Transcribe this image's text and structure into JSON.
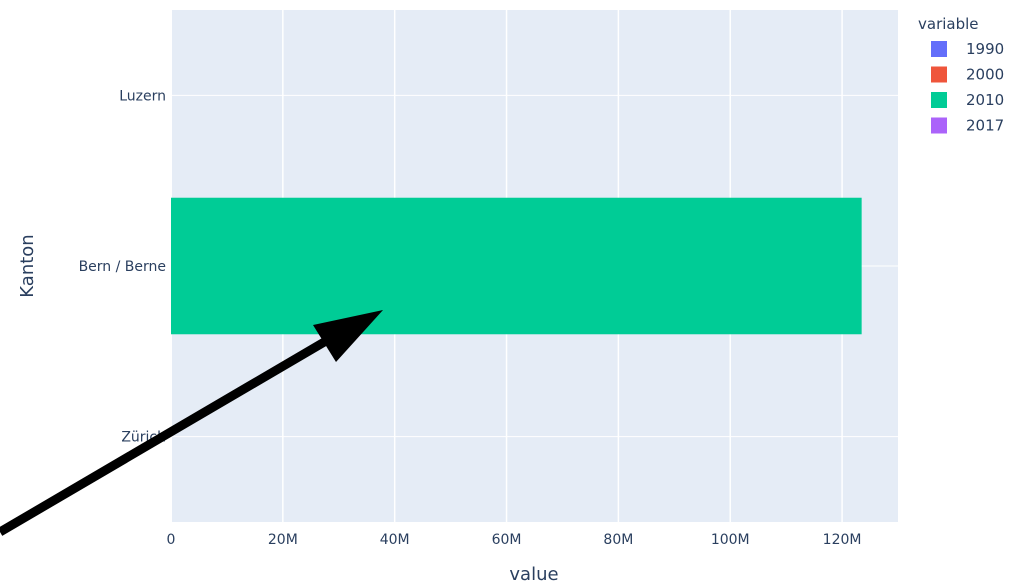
{
  "chart_data": {
    "type": "bar",
    "orientation": "horizontal",
    "barmode": "group",
    "xlabel": "value",
    "ylabel": "Kanton",
    "categories": [
      "Luzern",
      "Bern / Berne",
      "Zürich"
    ],
    "x_ticks": [
      0,
      20000000,
      40000000,
      60000000,
      80000000,
      100000000,
      120000000
    ],
    "x_tick_labels": [
      "0",
      "20M",
      "40M",
      "60M",
      "80M",
      "100M",
      "120M"
    ],
    "xlim": [
      0,
      130000000
    ],
    "legend": {
      "title": "variable",
      "placement": "right"
    },
    "series": [
      {
        "name": "1990",
        "color": "#636efa",
        "values": [
          0,
          0,
          0
        ]
      },
      {
        "name": "2000",
        "color": "#ef553b",
        "values": [
          0,
          0,
          0
        ]
      },
      {
        "name": "2010",
        "color": "#00cc96",
        "values": [
          0,
          123500000,
          0
        ]
      },
      {
        "name": "2017",
        "color": "#ab63fa",
        "values": [
          0,
          0,
          0
        ]
      }
    ],
    "grid": true,
    "plot_background": "#e5ecf6"
  },
  "annotation": {
    "type": "arrow",
    "color": "#000000"
  }
}
